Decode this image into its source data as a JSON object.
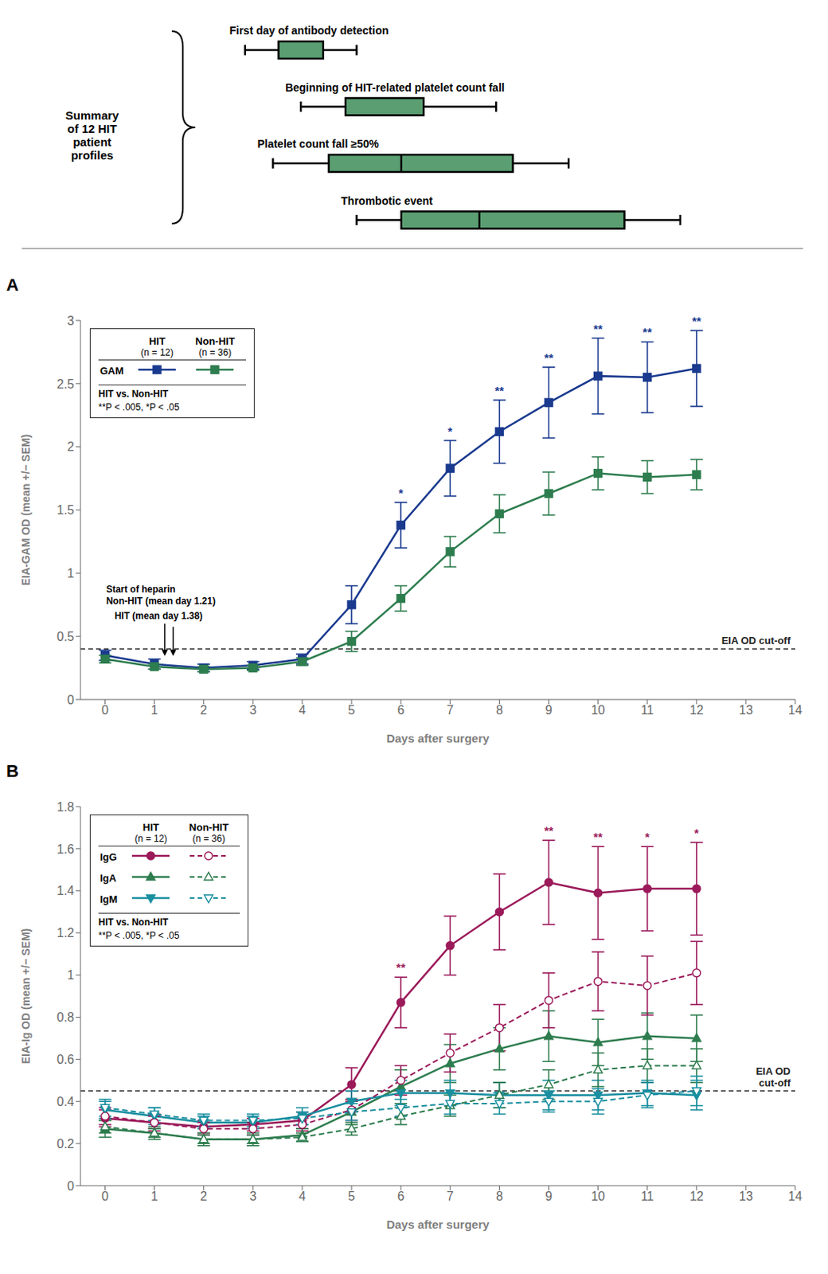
{
  "chart_data": [
    {
      "type": "boxplot",
      "title": "Summary\nof 12 HIT\npatient\nprofiles",
      "orientation": "horizontal",
      "categories": [
        "First day of antibody detection",
        "Beginning of HIT-related platelet count fall",
        "Platelet count fall ≥50%",
        "Thrombotic event"
      ],
      "boxes": [
        {
          "whislo": 4.0,
          "q1": 4.6,
          "median": null,
          "q3": 5.4,
          "whishi": 6.0
        },
        {
          "whislo": 5.0,
          "q1": 5.8,
          "median": null,
          "q3": 7.2,
          "whishi": 8.5
        },
        {
          "whislo": 4.5,
          "q1": 5.5,
          "median": 6.8,
          "q3": 8.8,
          "whishi": 9.8
        },
        {
          "whislo": 6.0,
          "q1": 6.8,
          "median": 8.2,
          "q3": 10.8,
          "whishi": 11.8
        }
      ],
      "color": "#5a9e72",
      "xlim": [
        0,
        14
      ],
      "tick_labels": false
    },
    {
      "type": "line",
      "title": "A",
      "xlabel": "Days after surgery",
      "ylabel": "EIA-GAM OD (mean +/− SEM)",
      "x": [
        0,
        1,
        2,
        3,
        4,
        5,
        6,
        7,
        8,
        9,
        10,
        11,
        12
      ],
      "xlim": [
        -0.5,
        14
      ],
      "xticks": [
        0,
        1,
        2,
        3,
        4,
        5,
        6,
        7,
        8,
        9,
        10,
        11,
        12,
        13,
        14
      ],
      "ylim": [
        0,
        3
      ],
      "yticks": [
        0,
        0.5,
        1,
        1.5,
        2,
        2.5,
        3
      ],
      "grid": false,
      "legend": "upper left",
      "series": [
        {
          "name": "GAM",
          "group": "HIT",
          "color": "#1a3a8f",
          "marker": "square",
          "line_style": "solid",
          "values": [
            0.35,
            0.28,
            0.25,
            0.27,
            0.32,
            0.75,
            1.38,
            1.83,
            2.12,
            2.35,
            2.56,
            2.55,
            2.62
          ],
          "errors": [
            0.04,
            0.04,
            0.03,
            0.03,
            0.04,
            0.15,
            0.18,
            0.22,
            0.25,
            0.28,
            0.3,
            0.28,
            0.3
          ],
          "significance": [
            null,
            null,
            null,
            null,
            null,
            null,
            "*",
            "*",
            "**",
            "**",
            "**",
            "**",
            "**"
          ]
        },
        {
          "name": "GAM",
          "group": "Non-HIT",
          "color": "#2e7d4f",
          "marker": "square",
          "line_style": "solid",
          "values": [
            0.32,
            0.26,
            0.24,
            0.25,
            0.3,
            0.46,
            0.8,
            1.17,
            1.47,
            1.63,
            1.79,
            1.76,
            1.78
          ],
          "errors": [
            0.03,
            0.02,
            0.02,
            0.02,
            0.03,
            0.08,
            0.1,
            0.12,
            0.15,
            0.17,
            0.13,
            0.13,
            0.12
          ]
        }
      ],
      "group_notes": [
        "(n = 12)",
        "(n = 36)"
      ],
      "legend_notes": [
        "HIT vs. Non-HIT",
        "**P < .005, *P < .05"
      ],
      "reference_lines": [
        {
          "y": 0.4,
          "label": "EIA OD cut-off",
          "line_style": "dashed"
        }
      ],
      "annotations": [
        {
          "text": "Start of heparin\nNon-HIT (mean day 1.21)",
          "x": 1.21
        },
        {
          "text": "HIT (mean day 1.38)",
          "x": 1.38
        }
      ]
    },
    {
      "type": "line",
      "title": "B",
      "xlabel": "Days after surgery",
      "ylabel": "EIA-Ig OD (mean +/− SEM)",
      "x": [
        0,
        1,
        2,
        3,
        4,
        5,
        6,
        7,
        8,
        9,
        10,
        11,
        12
      ],
      "xlim": [
        -0.5,
        14
      ],
      "xticks": [
        0,
        1,
        2,
        3,
        4,
        5,
        6,
        7,
        8,
        9,
        10,
        11,
        12,
        13,
        14
      ],
      "ylim": [
        0,
        1.8
      ],
      "yticks": [
        0,
        0.2,
        0.4,
        0.6,
        0.8,
        1,
        1.2,
        1.4,
        1.6,
        1.8
      ],
      "grid": false,
      "legend": "upper left",
      "series": [
        {
          "name": "IgG",
          "group": "HIT",
          "color": "#9b1a5a",
          "marker": "circle",
          "line_style": "solid",
          "values": [
            0.32,
            0.3,
            0.28,
            0.29,
            0.31,
            0.48,
            0.87,
            1.14,
            1.3,
            1.44,
            1.39,
            1.41,
            1.41
          ],
          "errors": [
            0.04,
            0.04,
            0.03,
            0.03,
            0.04,
            0.08,
            0.12,
            0.14,
            0.18,
            0.2,
            0.22,
            0.2,
            0.22
          ],
          "significance": [
            null,
            null,
            null,
            null,
            null,
            null,
            "**",
            null,
            null,
            "**",
            "**",
            "*",
            "*"
          ]
        },
        {
          "name": "IgA",
          "group": "HIT",
          "color": "#2e7d4f",
          "marker": "triangle-up",
          "line_style": "solid",
          "values": [
            0.27,
            0.25,
            0.22,
            0.22,
            0.24,
            0.35,
            0.47,
            0.58,
            0.65,
            0.71,
            0.68,
            0.71,
            0.7
          ],
          "errors": [
            0.04,
            0.03,
            0.03,
            0.03,
            0.03,
            0.06,
            0.08,
            0.09,
            0.1,
            0.12,
            0.11,
            0.11,
            0.11
          ]
        },
        {
          "name": "IgM",
          "group": "HIT",
          "color": "#1a8fa0",
          "marker": "triangle-down",
          "line_style": "solid",
          "values": [
            0.36,
            0.33,
            0.3,
            0.3,
            0.33,
            0.4,
            0.44,
            0.44,
            0.43,
            0.43,
            0.43,
            0.44,
            0.43
          ],
          "errors": [
            0.04,
            0.04,
            0.03,
            0.03,
            0.04,
            0.05,
            0.06,
            0.06,
            0.06,
            0.07,
            0.07,
            0.06,
            0.07
          ]
        },
        {
          "name": "IgG",
          "group": "Non-HIT",
          "color": "#9b1a5a",
          "marker": "circle",
          "line_style": "dashed",
          "values": [
            0.33,
            0.3,
            0.27,
            0.27,
            0.29,
            0.36,
            0.5,
            0.63,
            0.75,
            0.88,
            0.97,
            0.95,
            1.01
          ],
          "errors": [
            0.04,
            0.03,
            0.03,
            0.03,
            0.03,
            0.05,
            0.07,
            0.09,
            0.11,
            0.13,
            0.14,
            0.14,
            0.15
          ]
        },
        {
          "name": "IgA",
          "group": "Non-HIT",
          "color": "#2e7d4f",
          "marker": "triangle-up",
          "line_style": "dashed",
          "values": [
            0.28,
            0.25,
            0.22,
            0.22,
            0.23,
            0.27,
            0.33,
            0.38,
            0.43,
            0.48,
            0.55,
            0.57,
            0.57
          ],
          "errors": [
            0.03,
            0.02,
            0.02,
            0.02,
            0.02,
            0.03,
            0.04,
            0.05,
            0.06,
            0.07,
            0.08,
            0.08,
            0.08
          ]
        },
        {
          "name": "IgM",
          "group": "Non-HIT",
          "color": "#1a8fa0",
          "marker": "triangle-down",
          "line_style": "dashed",
          "values": [
            0.37,
            0.34,
            0.31,
            0.31,
            0.32,
            0.35,
            0.37,
            0.39,
            0.39,
            0.4,
            0.4,
            0.43,
            0.45
          ],
          "errors": [
            0.04,
            0.03,
            0.03,
            0.03,
            0.03,
            0.04,
            0.04,
            0.05,
            0.05,
            0.05,
            0.06,
            0.06,
            0.07
          ]
        }
      ],
      "group_notes": [
        "(n = 12)",
        "(n = 36)"
      ],
      "legend_notes": [
        "HIT vs. Non-HIT",
        "**P < .005, *P < .05"
      ],
      "reference_lines": [
        {
          "y": 0.45,
          "label": "EIA OD\ncut-off",
          "line_style": "dashed"
        }
      ]
    }
  ]
}
